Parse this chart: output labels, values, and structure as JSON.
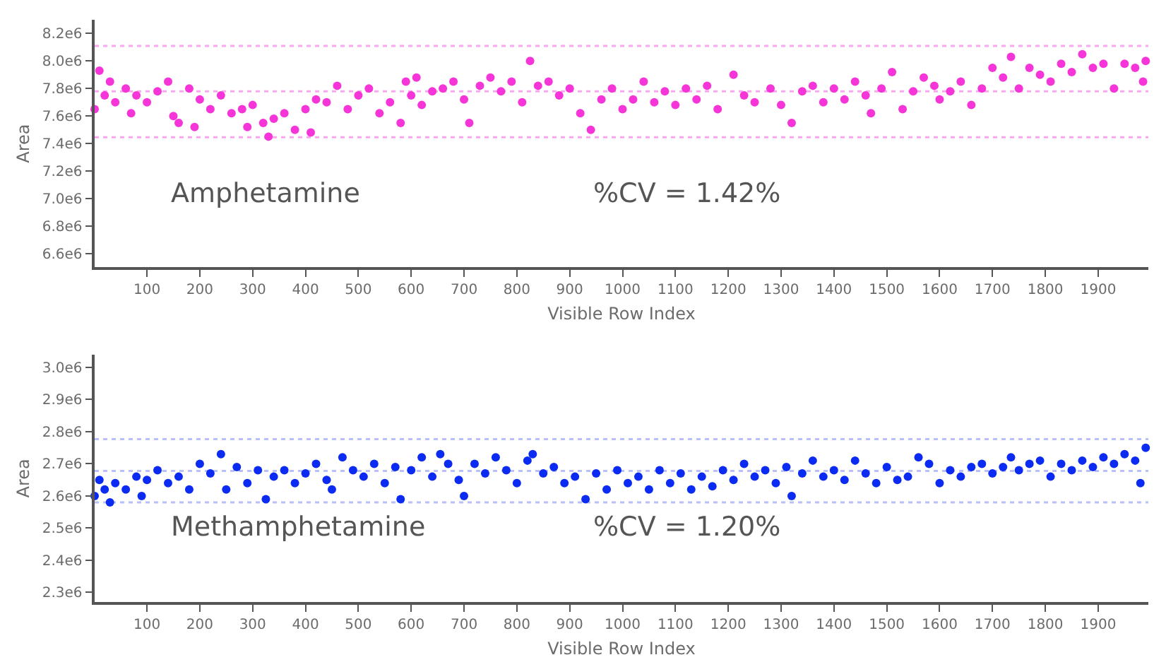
{
  "chart_data": [
    {
      "type": "scatter",
      "xlabel": "Visible Row Index",
      "ylabel": "Area",
      "marker": "circle",
      "color": "#f535d8",
      "annotations": [
        "Amphetamine",
        "%CV = 1.42%"
      ],
      "xlim": [
        1,
        1995
      ],
      "xticks": [
        100,
        200,
        300,
        400,
        500,
        600,
        700,
        800,
        900,
        1000,
        1100,
        1200,
        1300,
        1400,
        1500,
        1600,
        1700,
        1800,
        1900
      ],
      "ylim": [
        6500000,
        8300000
      ],
      "yticks": [
        {
          "value": 6600000,
          "label": "6.6e6"
        },
        {
          "value": 6800000,
          "label": "6.8e6"
        },
        {
          "value": 7000000,
          "label": "7.0e6"
        },
        {
          "value": 7200000,
          "label": "7.2e6"
        },
        {
          "value": 7400000,
          "label": "7.4e6"
        },
        {
          "value": 7600000,
          "label": "7.6e6"
        },
        {
          "value": 7800000,
          "label": "7.8e6"
        },
        {
          "value": 8000000,
          "label": "8.0e6"
        },
        {
          "value": 8200000,
          "label": "8.2e6"
        }
      ],
      "ref_lines": [
        {
          "axis": "y",
          "value": 8110000,
          "label": null,
          "color": "#f8a8ee",
          "line_style": "dotted"
        },
        {
          "axis": "y",
          "value": 7780000,
          "label": null,
          "color": "#f8a8ee",
          "line_style": "dotted"
        },
        {
          "axis": "y",
          "value": 7445000,
          "label": null,
          "color": "#f8a8ee",
          "line_style": "dotted"
        }
      ],
      "x": [
        1,
        10,
        20,
        30,
        40,
        60,
        70,
        80,
        100,
        120,
        140,
        150,
        160,
        180,
        190,
        200,
        220,
        240,
        260,
        280,
        290,
        300,
        320,
        330,
        340,
        360,
        380,
        400,
        410,
        420,
        440,
        460,
        480,
        500,
        520,
        540,
        560,
        580,
        590,
        600,
        610,
        620,
        640,
        660,
        680,
        700,
        710,
        730,
        750,
        770,
        790,
        810,
        825,
        840,
        860,
        880,
        900,
        920,
        940,
        960,
        980,
        1000,
        1020,
        1040,
        1060,
        1080,
        1100,
        1120,
        1140,
        1160,
        1180,
        1210,
        1230,
        1250,
        1280,
        1300,
        1320,
        1340,
        1360,
        1380,
        1400,
        1420,
        1440,
        1460,
        1470,
        1490,
        1510,
        1530,
        1550,
        1570,
        1590,
        1600,
        1620,
        1640,
        1660,
        1680,
        1700,
        1720,
        1735,
        1750,
        1770,
        1790,
        1810,
        1830,
        1850,
        1870,
        1890,
        1910,
        1930,
        1950,
        1970,
        1985,
        1990
      ],
      "values": [
        7650000,
        7930000,
        7750000,
        7850000,
        7700000,
        7800000,
        7620000,
        7750000,
        7700000,
        7780000,
        7850000,
        7600000,
        7550000,
        7800000,
        7520000,
        7720000,
        7650000,
        7750000,
        7620000,
        7650000,
        7520000,
        7680000,
        7550000,
        7450000,
        7580000,
        7620000,
        7500000,
        7650000,
        7480000,
        7720000,
        7700000,
        7820000,
        7650000,
        7750000,
        7800000,
        7620000,
        7700000,
        7550000,
        7850000,
        7750000,
        7880000,
        7680000,
        7780000,
        7800000,
        7850000,
        7720000,
        7550000,
        7820000,
        7880000,
        7780000,
        7850000,
        7700000,
        8000000,
        7820000,
        7850000,
        7750000,
        7800000,
        7620000,
        7500000,
        7720000,
        7800000,
        7650000,
        7720000,
        7850000,
        7700000,
        7780000,
        7680000,
        7800000,
        7720000,
        7820000,
        7650000,
        7900000,
        7750000,
        7700000,
        7800000,
        7680000,
        7550000,
        7780000,
        7820000,
        7700000,
        7800000,
        7720000,
        7850000,
        7750000,
        7620000,
        7800000,
        7920000,
        7650000,
        7780000,
        7880000,
        7820000,
        7720000,
        7780000,
        7850000,
        7680000,
        7800000,
        7950000,
        7880000,
        8030000,
        7800000,
        7950000,
        7900000,
        7850000,
        7980000,
        7920000,
        8050000,
        7950000,
        7980000,
        7800000,
        7980000,
        7950000,
        7850000,
        8000000
      ]
    },
    {
      "type": "scatter",
      "xlabel": "Visible Row Index",
      "ylabel": "Area",
      "marker": "circle",
      "color": "#0b2af2",
      "annotations": [
        "Methamphetamine",
        "%CV = 1.20%"
      ],
      "xlim": [
        1,
        1995
      ],
      "xticks": [
        100,
        200,
        300,
        400,
        500,
        600,
        700,
        800,
        900,
        1000,
        1100,
        1200,
        1300,
        1400,
        1500,
        1600,
        1700,
        1800,
        1900
      ],
      "ylim": [
        2270000,
        3040000
      ],
      "yticks": [
        {
          "value": 2300000,
          "label": "2.3e6"
        },
        {
          "value": 2400000,
          "label": "2.4e6"
        },
        {
          "value": 2500000,
          "label": "2.5e6"
        },
        {
          "value": 2600000,
          "label": "2.6e6"
        },
        {
          "value": 2700000,
          "label": "2.7e6"
        },
        {
          "value": 2800000,
          "label": "2.8e6"
        },
        {
          "value": 2900000,
          "label": "2.9e6"
        },
        {
          "value": 3000000,
          "label": "3.0e6"
        }
      ],
      "ref_lines": [
        {
          "axis": "y",
          "value": 2777000,
          "label": null,
          "color": "#b8c0f6",
          "line_style": "dotted"
        },
        {
          "axis": "y",
          "value": 2678000,
          "label": null,
          "color": "#b8c0f6",
          "line_style": "dotted"
        },
        {
          "axis": "y",
          "value": 2580000,
          "label": null,
          "color": "#b8c0f6",
          "line_style": "dotted"
        }
      ],
      "x": [
        1,
        10,
        20,
        30,
        40,
        60,
        80,
        90,
        100,
        120,
        140,
        160,
        180,
        200,
        220,
        240,
        250,
        270,
        290,
        310,
        325,
        340,
        360,
        380,
        400,
        420,
        440,
        450,
        470,
        490,
        510,
        530,
        550,
        570,
        580,
        600,
        620,
        640,
        655,
        670,
        690,
        700,
        720,
        740,
        760,
        780,
        800,
        820,
        830,
        850,
        870,
        890,
        910,
        930,
        950,
        970,
        990,
        1010,
        1030,
        1050,
        1070,
        1090,
        1110,
        1130,
        1150,
        1170,
        1190,
        1210,
        1230,
        1250,
        1270,
        1290,
        1310,
        1320,
        1340,
        1360,
        1380,
        1400,
        1420,
        1440,
        1460,
        1480,
        1500,
        1520,
        1540,
        1560,
        1580,
        1600,
        1620,
        1640,
        1660,
        1680,
        1700,
        1720,
        1735,
        1750,
        1770,
        1790,
        1810,
        1830,
        1850,
        1870,
        1890,
        1910,
        1930,
        1950,
        1970,
        1980,
        1990
      ],
      "values": [
        2600000,
        2650000,
        2620000,
        2580000,
        2640000,
        2620000,
        2660000,
        2600000,
        2650000,
        2680000,
        2640000,
        2660000,
        2620000,
        2700000,
        2670000,
        2730000,
        2620000,
        2690000,
        2640000,
        2680000,
        2590000,
        2660000,
        2680000,
        2640000,
        2670000,
        2700000,
        2650000,
        2620000,
        2720000,
        2680000,
        2660000,
        2700000,
        2640000,
        2690000,
        2590000,
        2680000,
        2720000,
        2660000,
        2730000,
        2700000,
        2650000,
        2600000,
        2700000,
        2670000,
        2720000,
        2680000,
        2640000,
        2710000,
        2730000,
        2670000,
        2690000,
        2640000,
        2660000,
        2590000,
        2670000,
        2620000,
        2680000,
        2640000,
        2660000,
        2620000,
        2680000,
        2640000,
        2670000,
        2620000,
        2660000,
        2630000,
        2680000,
        2650000,
        2700000,
        2660000,
        2680000,
        2640000,
        2690000,
        2600000,
        2670000,
        2710000,
        2660000,
        2680000,
        2650000,
        2710000,
        2670000,
        2640000,
        2690000,
        2650000,
        2660000,
        2720000,
        2700000,
        2640000,
        2680000,
        2660000,
        2690000,
        2700000,
        2670000,
        2690000,
        2720000,
        2680000,
        2700000,
        2710000,
        2660000,
        2700000,
        2680000,
        2710000,
        2690000,
        2720000,
        2700000,
        2730000,
        2710000,
        2640000,
        2750000
      ]
    }
  ]
}
